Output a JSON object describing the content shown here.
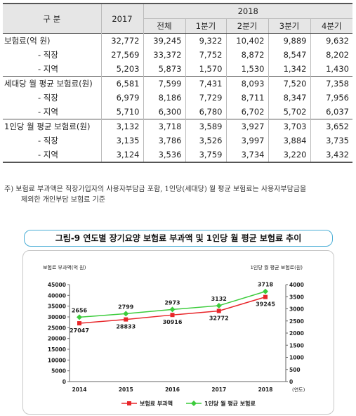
{
  "table": {
    "header": {
      "category": "구 분",
      "year_prev": "2017",
      "year_cur": "2018",
      "subcols": [
        "전체",
        "1분기",
        "2분기",
        "3분기",
        "4분기"
      ]
    },
    "rows": [
      {
        "label": "보험료(억 원)",
        "values": [
          "32,772",
          "39,245",
          "9,322",
          "10,402",
          "9,889",
          "9,632"
        ]
      },
      {
        "label": "- 직장",
        "values": [
          "27,569",
          "33,372",
          "7,752",
          "8,872",
          "8,547",
          "8,202"
        ]
      },
      {
        "label": "- 지역",
        "values": [
          "5,203",
          "5,873",
          "1,570",
          "1,530",
          "1,342",
          "1,430"
        ]
      },
      {
        "label": "세대당 월 평균 보험료(원)",
        "values": [
          "6,581",
          "7,599",
          "7,431",
          "8,093",
          "7,520",
          "7,358"
        ]
      },
      {
        "label": "- 직장",
        "values": [
          "6,979",
          "8,186",
          "7,729",
          "8,711",
          "8,347",
          "7,956"
        ]
      },
      {
        "label": "- 지역",
        "values": [
          "5,710",
          "6,300",
          "6,780",
          "6,702",
          "5,702",
          "6,037"
        ]
      },
      {
        "label": "1인당 월 평균 보험료(원)",
        "values": [
          "3,132",
          "3,718",
          "3,589",
          "3,927",
          "3,703",
          "3,652"
        ]
      },
      {
        "label": "- 직장",
        "values": [
          "3,135",
          "3,786",
          "3,526",
          "3,997",
          "3,884",
          "3,735"
        ]
      },
      {
        "label": "- 지역",
        "values": [
          "3,124",
          "3,536",
          "3,759",
          "3,734",
          "3,220",
          "3,432"
        ]
      }
    ]
  },
  "note": {
    "line1": "주) 보험료 부과액은 직장가입자의 사용자부담금 포함, 1인당(세대당) 월 평균 보험료는 사용자부담금을",
    "line2": "제외한 개인부담 보험료 기준"
  },
  "figure_title": "그림-9  연도별 장기요양 보험료 부과액 및 1인당 월 평균 보험료 추이",
  "chart_data": {
    "type": "line",
    "x": [
      "2014",
      "2015",
      "2016",
      "2017",
      "2018"
    ],
    "x_unit": "(연도)",
    "y_left": {
      "label": "보험료 부과액(억 원)",
      "lim": [
        0,
        45000
      ],
      "ticks": [
        0,
        5000,
        10000,
        15000,
        20000,
        25000,
        30000,
        35000,
        40000,
        45000
      ]
    },
    "y_right": {
      "label": "1인당 월 평균 보험료(원)",
      "lim": [
        0,
        4000
      ],
      "ticks": [
        0,
        500,
        1000,
        1500,
        2000,
        2500,
        3000,
        3500,
        4000
      ]
    },
    "series": [
      {
        "name": "보험료 부과액",
        "axis": "left",
        "color": "#e8262a",
        "marker": "square",
        "values": [
          27047,
          28833,
          30916,
          32772,
          39245
        ]
      },
      {
        "name": "1인당 월 평균 보험료",
        "axis": "right",
        "color": "#3ccc3c",
        "marker": "diamond",
        "values": [
          2656,
          2799,
          2973,
          3132,
          3718
        ]
      }
    ],
    "legend": "bottom",
    "grid": false
  }
}
